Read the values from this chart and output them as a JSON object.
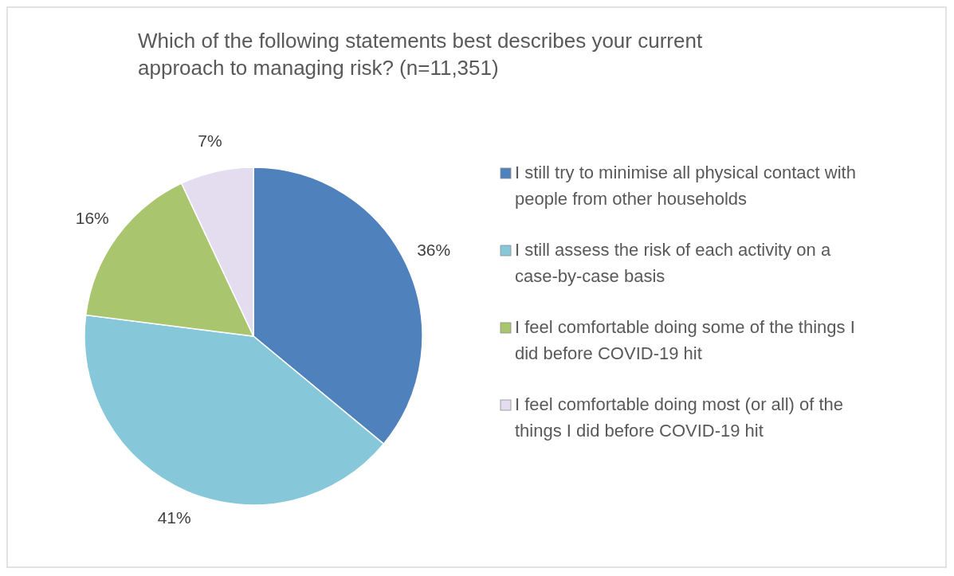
{
  "chart_data": {
    "type": "pie",
    "title": "Which of the following statements best describes your current approach to managing risk? (n=11,351)",
    "categories": [
      "I still try to minimise all physical contact with people from other households",
      "I still assess the risk of each activity on a case-by-case basis",
      "I feel comfortable doing some of the things I did before COVID-19 hit",
      "I feel comfortable doing most (or all) of the things I did before COVID-19 hit"
    ],
    "values": [
      36,
      41,
      16,
      7
    ],
    "colors": [
      "#4f81bd",
      "#86c8da",
      "#a9c56e",
      "#e4dcef"
    ],
    "value_labels": [
      "36%",
      "41%",
      "16%",
      "7%"
    ],
    "legend": "right"
  }
}
